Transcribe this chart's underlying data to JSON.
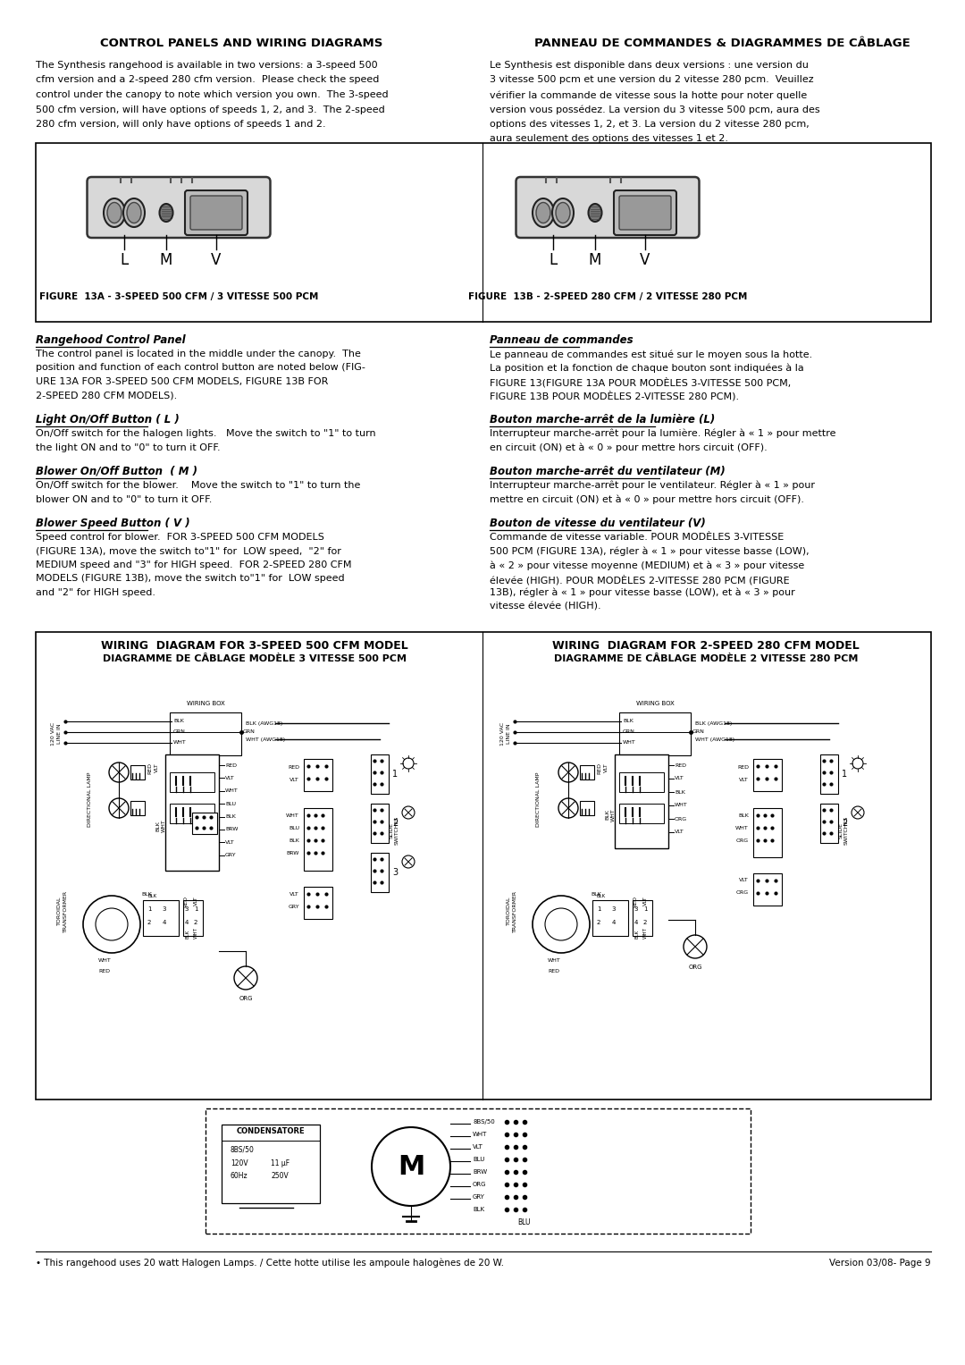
{
  "page_bg": "#ffffff",
  "title_left": "CONTROL PANELS AND WIRING DIAGRAMS",
  "title_right": "PANNEAU DE COMMANDES & DIAGRAMMES DE CÂBLAGE",
  "intro_left": "The Synthesis rangehood is available in two versions: a 3-speed 500\ncfm version and a 2-speed 280 cfm version.  Please check the speed\ncontrol under the canopy to note which version you own.  The 3-speed\n500 cfm version, will have options of speeds 1, 2, and 3.  The 2-speed\n280 cfm version, will only have options of speeds 1 and 2.",
  "intro_right": "Le Synthesis est disponible dans deux versions : une version du\n3 vitesse 500 pcm et une version du 2 vitesse 280 pcm.  Veuillez\nvérifier la commande de vitesse sous la hotte pour noter quelle\nversion vous possédez. La version du 3 vitesse 500 pcm, aura des\noptions des vitesses 1, 2, et 3. La version du 2 vitesse 280 pcm,\naura seulement des options des vitesses 1 et 2.",
  "fig13a_label": "FIGURE  13A - 3-SPEED 500 CFM / 3 VITESSE 500 PCM",
  "fig13b_label": "FIGURE  13B - 2-SPEED 280 CFM / 2 VITESSE 280 PCM",
  "wiring_left_title1": "WIRING  DIAGRAM FOR 3-SPEED 500 CFM MODEL",
  "wiring_left_title2": "DIAGRAMME DE CÂBLAGE MODÈLE 3 VITESSE 500 PCM",
  "wiring_right_title1": "WIRING  DIAGRAM FOR 2-SPEED 280 CFM MODEL",
  "wiring_right_title2": "DIAGRAMME DE CÂBLAGE MODÈLE 2 VITESSE 280 PCM",
  "footer_left": "• This rangehood uses 20 watt Halogen Lamps. / Cette hotte utilise les ampoule halogènes de 20 W.",
  "footer_right": "Version 03/08- Page 9"
}
